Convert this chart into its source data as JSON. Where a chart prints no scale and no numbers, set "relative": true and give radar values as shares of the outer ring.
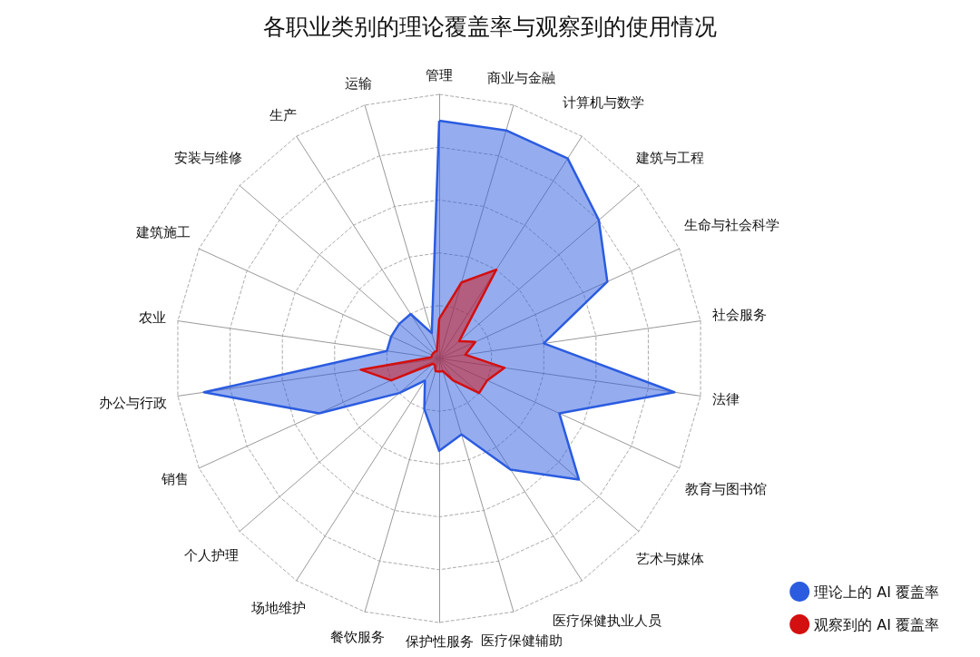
{
  "chart_data": {
    "type": "radar",
    "title": "各职业类别的理论覆盖率与观察到的使用情况",
    "categories": [
      "管理",
      "商业与金融",
      "计算机与数学",
      "建筑与工程",
      "生命与社会科学",
      "社会服务",
      "法律",
      "教育与图书馆",
      "艺术与媒体",
      "医疗保健执业人员",
      "医疗保健辅助",
      "保护性服务",
      "餐饮服务",
      "场地维护",
      "个人护理",
      "销售",
      "办公与行政",
      "农业",
      "建筑施工",
      "安装与维修",
      "生产",
      "运输"
    ],
    "series": [
      {
        "name": "理论上的 AI 覆盖率",
        "color": "#2b5ce0",
        "values": [
          0.9,
          0.9,
          0.9,
          0.8,
          0.7,
          0.4,
          0.9,
          0.5,
          0.7,
          0.5,
          0.3,
          0.35,
          0.2,
          0.1,
          0.2,
          0.5,
          0.9,
          0.2,
          0.2,
          0.2,
          0.2,
          0.1
        ]
      },
      {
        "name": "观察到的 AI 覆盖率",
        "color": "#d40f0f",
        "values": [
          0.15,
          0.3,
          0.4,
          0.1,
          0.15,
          0.1,
          0.25,
          0.2,
          0.2,
          0.1,
          0.05,
          0.05,
          0.05,
          0.03,
          0.03,
          0.2,
          0.3,
          0.03,
          0.03,
          0.03,
          0.03,
          0.03
        ]
      }
    ],
    "relative": true,
    "grid": true,
    "legend": "bottom right",
    "marker": "none"
  }
}
